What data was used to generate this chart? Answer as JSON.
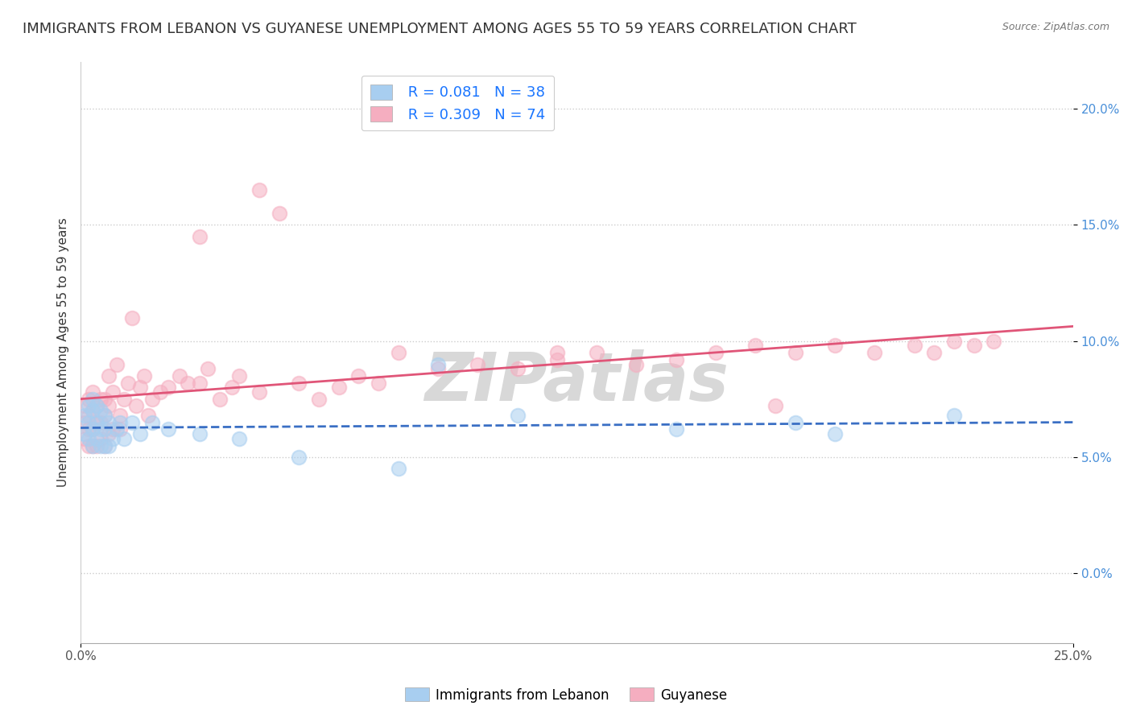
{
  "title": "IMMIGRANTS FROM LEBANON VS GUYANESE UNEMPLOYMENT AMONG AGES 55 TO 59 YEARS CORRELATION CHART",
  "source": "Source: ZipAtlas.com",
  "ylabel": "Unemployment Among Ages 55 to 59 years",
  "xlim": [
    0.0,
    0.25
  ],
  "ylim": [
    -0.03,
    0.22
  ],
  "xticks": [
    0.0,
    0.05,
    0.1,
    0.15,
    0.2,
    0.25
  ],
  "xticklabels": [
    "0.0%",
    "5.0%",
    "10.0%",
    "15.0%",
    "20.0%",
    "25.0%"
  ],
  "yticks": [
    0.0,
    0.05,
    0.1,
    0.15,
    0.2
  ],
  "yticklabels": [
    "0.0%",
    "5.0%",
    "10.0%",
    "15.0%",
    "20.0%"
  ],
  "legend_R1": "R = 0.081",
  "legend_N1": "N = 38",
  "legend_R2": "R = 0.309",
  "legend_N2": "N = 74",
  "series1_label": "Immigrants from Lebanon",
  "series2_label": "Guyanese",
  "color1": "#a8cef0",
  "color2": "#f5aec0",
  "trendline1_color": "#3a6fc4",
  "trendline2_color": "#e05578",
  "background_color": "#ffffff",
  "grid_color": "#cccccc",
  "title_fontsize": 13,
  "axis_fontsize": 11,
  "tick_fontsize": 11,
  "watermark": "ZIPatlas",
  "watermark_color": "#d8d8d8",
  "series1_x": [
    0.001,
    0.001,
    0.002,
    0.002,
    0.002,
    0.003,
    0.003,
    0.003,
    0.003,
    0.004,
    0.004,
    0.004,
    0.005,
    0.005,
    0.005,
    0.006,
    0.006,
    0.006,
    0.007,
    0.007,
    0.008,
    0.009,
    0.01,
    0.011,
    0.013,
    0.015,
    0.018,
    0.022,
    0.03,
    0.04,
    0.055,
    0.08,
    0.09,
    0.11,
    0.15,
    0.18,
    0.19,
    0.22
  ],
  "series1_y": [
    0.06,
    0.068,
    0.058,
    0.065,
    0.072,
    0.055,
    0.062,
    0.07,
    0.075,
    0.058,
    0.065,
    0.072,
    0.055,
    0.062,
    0.07,
    0.055,
    0.062,
    0.068,
    0.055,
    0.065,
    0.058,
    0.062,
    0.065,
    0.058,
    0.065,
    0.06,
    0.065,
    0.062,
    0.06,
    0.058,
    0.05,
    0.045,
    0.09,
    0.068,
    0.062,
    0.065,
    0.06,
    0.068
  ],
  "series2_x": [
    0.001,
    0.001,
    0.001,
    0.002,
    0.002,
    0.002,
    0.002,
    0.003,
    0.003,
    0.003,
    0.003,
    0.004,
    0.004,
    0.004,
    0.005,
    0.005,
    0.005,
    0.006,
    0.006,
    0.006,
    0.007,
    0.007,
    0.007,
    0.008,
    0.008,
    0.009,
    0.01,
    0.01,
    0.011,
    0.012,
    0.013,
    0.014,
    0.015,
    0.016,
    0.017,
    0.018,
    0.02,
    0.022,
    0.025,
    0.027,
    0.03,
    0.032,
    0.035,
    0.038,
    0.04,
    0.045,
    0.05,
    0.055,
    0.06,
    0.065,
    0.07,
    0.075,
    0.08,
    0.09,
    0.1,
    0.11,
    0.12,
    0.13,
    0.14,
    0.15,
    0.16,
    0.17,
    0.18,
    0.19,
    0.2,
    0.21,
    0.215,
    0.22,
    0.225,
    0.23,
    0.03,
    0.045,
    0.12,
    0.175
  ],
  "series2_y": [
    0.058,
    0.065,
    0.072,
    0.055,
    0.062,
    0.068,
    0.075,
    0.055,
    0.062,
    0.07,
    0.078,
    0.055,
    0.065,
    0.072,
    0.058,
    0.065,
    0.075,
    0.055,
    0.068,
    0.075,
    0.06,
    0.072,
    0.085,
    0.062,
    0.078,
    0.09,
    0.062,
    0.068,
    0.075,
    0.082,
    0.11,
    0.072,
    0.08,
    0.085,
    0.068,
    0.075,
    0.078,
    0.08,
    0.085,
    0.082,
    0.082,
    0.088,
    0.075,
    0.08,
    0.085,
    0.078,
    0.155,
    0.082,
    0.075,
    0.08,
    0.085,
    0.082,
    0.095,
    0.088,
    0.09,
    0.088,
    0.092,
    0.095,
    0.09,
    0.092,
    0.095,
    0.098,
    0.095,
    0.098,
    0.095,
    0.098,
    0.095,
    0.1,
    0.098,
    0.1,
    0.145,
    0.165,
    0.095,
    0.072
  ]
}
